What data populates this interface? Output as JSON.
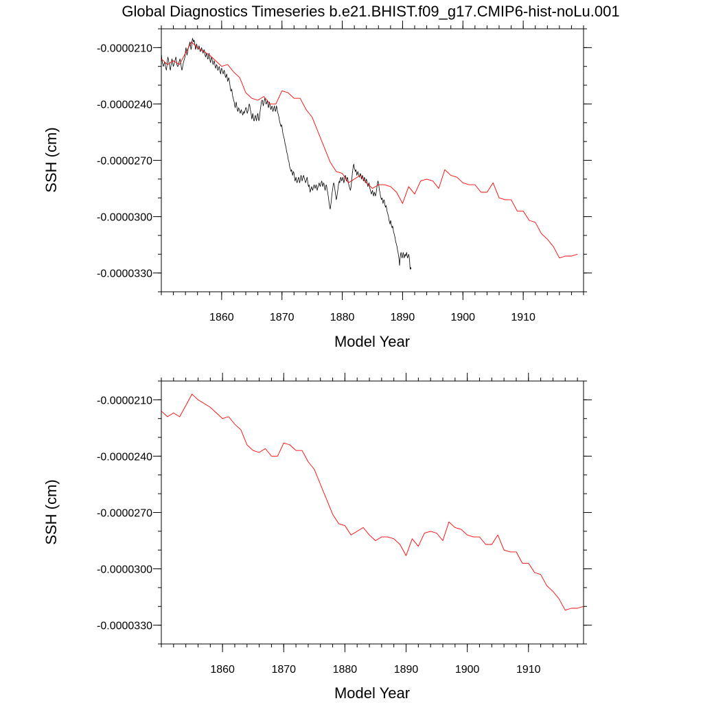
{
  "figure_title": "Global Diagnostics Timeseries b.e21.BHIST.f09_g17.CMIP6-hist-noLu.001",
  "colors": {
    "monthly": "#000000",
    "annual": "#ff0000",
    "axes": "#000000",
    "background": "#ffffff"
  },
  "chart_data": [
    {
      "type": "line",
      "title": "",
      "xlabel": "Model Year",
      "ylabel": "SSH (cm)",
      "xlim": [
        1850,
        1920
      ],
      "ylim": [
        -3.4e-05,
        -2e-05
      ],
      "xticks": [
        1860,
        1870,
        1880,
        1890,
        1900,
        1910
      ],
      "xtick_labels": [
        "1860",
        "1870",
        "1880",
        "1890",
        "1900",
        "1910"
      ],
      "yticks": [
        -2.1e-05,
        -2.4e-05,
        -2.7e-05,
        -3e-05,
        -3.3e-05
      ],
      "ytick_labels": [
        "-0.0000210",
        "-0.0000240",
        "-0.0000270",
        "-0.0000300",
        "-0.0000330"
      ],
      "grid": false,
      "legend": "none",
      "series": [
        {
          "style": "monthly",
          "color": "#000000",
          "x_start": 1850.0,
          "x_step": 0.0833333,
          "values": [
            -2.13e-05,
            -2.16e-05,
            -2.18e-05,
            -2.19e-05,
            -2.2e-05,
            -2.19e-05,
            -2.18e-05,
            -2.18e-05,
            -2.2e-05,
            -2.21e-05,
            -2.22e-05,
            -2.2e-05,
            -2.17e-05,
            -2.15e-05,
            -2.16e-05,
            -2.18e-05,
            -2.19e-05,
            -2.21e-05,
            -2.22e-05,
            -2.2e-05,
            -2.18e-05,
            -2.16e-05,
            -2.17e-05,
            -2.19e-05,
            -2.2e-05,
            -2.19e-05,
            -2.18e-05,
            -2.17e-05,
            -2.16e-05,
            -2.15e-05,
            -2.17e-05,
            -2.19e-05,
            -2.2e-05,
            -2.2e-05,
            -2.19e-05,
            -2.18e-05,
            -2.17e-05,
            -2.16e-05,
            -2.17e-05,
            -2.19e-05,
            -2.21e-05,
            -2.22e-05,
            -2.21e-05,
            -2.19e-05,
            -2.18e-05,
            -2.17e-05,
            -2.16e-05,
            -2.15e-05,
            -2.12e-05,
            -2.1e-05,
            -2.12e-05,
            -2.14e-05,
            -2.13e-05,
            -2.11e-05,
            -2.1e-05,
            -2.09e-05,
            -2.08e-05,
            -2.07e-05,
            -2.09e-05,
            -2.11e-05,
            -2.1e-05,
            -2.07e-05,
            -2.05e-05,
            -2.06e-05,
            -2.07e-05,
            -2.06e-05,
            -2.07e-05,
            -2.09e-05,
            -2.11e-05,
            -2.1e-05,
            -2.08e-05,
            -2.09e-05,
            -2.1e-05,
            -2.11e-05,
            -2.1e-05,
            -2.09e-05,
            -2.1e-05,
            -2.12e-05,
            -2.12e-05,
            -2.11e-05,
            -2.1e-05,
            -2.11e-05,
            -2.12e-05,
            -2.13e-05,
            -2.12e-05,
            -2.11e-05,
            -2.12e-05,
            -2.14e-05,
            -2.15e-05,
            -2.14e-05,
            -2.13e-05,
            -2.14e-05,
            -2.16e-05,
            -2.16e-05,
            -2.14e-05,
            -2.13e-05,
            -2.15e-05,
            -2.17e-05,
            -2.18e-05,
            -2.16e-05,
            -2.15e-05,
            -2.16e-05,
            -2.18e-05,
            -2.19e-05,
            -2.18e-05,
            -2.17e-05,
            -2.18e-05,
            -2.2e-05,
            -2.21e-05,
            -2.2e-05,
            -2.19e-05,
            -2.2e-05,
            -2.22e-05,
            -2.22e-05,
            -2.21e-05,
            -2.2e-05,
            -2.21e-05,
            -2.23e-05,
            -2.24e-05,
            -2.22e-05,
            -2.21e-05,
            -2.22e-05,
            -2.23e-05,
            -2.24e-05,
            -2.23e-05,
            -2.22e-05,
            -2.23e-05,
            -2.25e-05,
            -2.26e-05,
            -2.25e-05,
            -2.24e-05,
            -2.26e-05,
            -2.28e-05,
            -2.27e-05,
            -2.26e-05,
            -2.27e-05,
            -2.29e-05,
            -2.31e-05,
            -2.33e-05,
            -2.33e-05,
            -2.32e-05,
            -2.34e-05,
            -2.36e-05,
            -2.37e-05,
            -2.38e-05,
            -2.39e-05,
            -2.41e-05,
            -2.42e-05,
            -2.4e-05,
            -2.39e-05,
            -2.41e-05,
            -2.43e-05,
            -2.44e-05,
            -2.43e-05,
            -2.42e-05,
            -2.43e-05,
            -2.44e-05,
            -2.45e-05,
            -2.44e-05,
            -2.43e-05,
            -2.44e-05,
            -2.45e-05,
            -2.46e-05,
            -2.45e-05,
            -2.44e-05,
            -2.45e-05,
            -2.44e-05,
            -2.43e-05,
            -2.42e-05,
            -2.42e-05,
            -2.44e-05,
            -2.45e-05,
            -2.44e-05,
            -2.43e-05,
            -2.41e-05,
            -2.4e-05,
            -2.41e-05,
            -2.43e-05,
            -2.44e-05,
            -2.46e-05,
            -2.48e-05,
            -2.47e-05,
            -2.45e-05,
            -2.47e-05,
            -2.49e-05,
            -2.49e-05,
            -2.47e-05,
            -2.46e-05,
            -2.47e-05,
            -2.49e-05,
            -2.48e-05,
            -2.46e-05,
            -2.45e-05,
            -2.47e-05,
            -2.49e-05,
            -2.48e-05,
            -2.45e-05,
            -2.43e-05,
            -2.41e-05,
            -2.39e-05,
            -2.38e-05,
            -2.38e-05,
            -2.4e-05,
            -2.41e-05,
            -2.39e-05,
            -2.38e-05,
            -2.37e-05,
            -2.38e-05,
            -2.4e-05,
            -2.4e-05,
            -2.39e-05,
            -2.38e-05,
            -2.4e-05,
            -2.42e-05,
            -2.41e-05,
            -2.39e-05,
            -2.4e-05,
            -2.42e-05,
            -2.43e-05,
            -2.42e-05,
            -2.41e-05,
            -2.42e-05,
            -2.44e-05,
            -2.43e-05,
            -2.42e-05,
            -2.41e-05,
            -2.43e-05,
            -2.44e-05,
            -2.43e-05,
            -2.41e-05,
            -2.42e-05,
            -2.44e-05,
            -2.45e-05,
            -2.46e-05,
            -2.47e-05,
            -2.49e-05,
            -2.5e-05,
            -2.51e-05,
            -2.52e-05,
            -2.51e-05,
            -2.52e-05,
            -2.54e-05,
            -2.56e-05,
            -2.57e-05,
            -2.58e-05,
            -2.59e-05,
            -2.61e-05,
            -2.62e-05,
            -2.63e-05,
            -2.65e-05,
            -2.66e-05,
            -2.67e-05,
            -2.69e-05,
            -2.7e-05,
            -2.71e-05,
            -2.73e-05,
            -2.74e-05,
            -2.75e-05,
            -2.76e-05,
            -2.75e-05,
            -2.76e-05,
            -2.78e-05,
            -2.77e-05,
            -2.76e-05,
            -2.77e-05,
            -2.79e-05,
            -2.81e-05,
            -2.8e-05,
            -2.79e-05,
            -2.81e-05,
            -2.82e-05,
            -2.81e-05,
            -2.8e-05,
            -2.79e-05,
            -2.8e-05,
            -2.82e-05,
            -2.81e-05,
            -2.79e-05,
            -2.78e-05,
            -2.79e-05,
            -2.81e-05,
            -2.8e-05,
            -2.79e-05,
            -2.78e-05,
            -2.79e-05,
            -2.8e-05,
            -2.81e-05,
            -2.82e-05,
            -2.81e-05,
            -2.8e-05,
            -2.79e-05,
            -2.81e-05,
            -2.83e-05,
            -2.84e-05,
            -2.83e-05,
            -2.85e-05,
            -2.87e-05,
            -2.86e-05,
            -2.85e-05,
            -2.84e-05,
            -2.85e-05,
            -2.86e-05,
            -2.85e-05,
            -2.84e-05,
            -2.83e-05,
            -2.84e-05,
            -2.85e-05,
            -2.84e-05,
            -2.83e-05,
            -2.84e-05,
            -2.86e-05,
            -2.85e-05,
            -2.84e-05,
            -2.83e-05,
            -2.82e-05,
            -2.83e-05,
            -2.84e-05,
            -2.83e-05,
            -2.82e-05,
            -2.81e-05,
            -2.82e-05,
            -2.84e-05,
            -2.83e-05,
            -2.82e-05,
            -2.83e-05,
            -2.85e-05,
            -2.86e-05,
            -2.84e-05,
            -2.83e-05,
            -2.84e-05,
            -2.86e-05,
            -2.87e-05,
            -2.89e-05,
            -2.91e-05,
            -2.93e-05,
            -2.95e-05,
            -2.96e-05,
            -2.94e-05,
            -2.92e-05,
            -2.89e-05,
            -2.87e-05,
            -2.85e-05,
            -2.83e-05,
            -2.82e-05,
            -2.83e-05,
            -2.85e-05,
            -2.87e-05,
            -2.89e-05,
            -2.91e-05,
            -2.9e-05,
            -2.88e-05,
            -2.86e-05,
            -2.84e-05,
            -2.82e-05,
            -2.81e-05,
            -2.82e-05,
            -2.8e-05,
            -2.79e-05,
            -2.8e-05,
            -2.81e-05,
            -2.8e-05,
            -2.79e-05,
            -2.8e-05,
            -2.82e-05,
            -2.81e-05,
            -2.79e-05,
            -2.78e-05,
            -2.79e-05,
            -2.81e-05,
            -2.8e-05,
            -2.79e-05,
            -2.8e-05,
            -2.82e-05,
            -2.83e-05,
            -2.84e-05,
            -2.85e-05,
            -2.86e-05,
            -2.85e-05,
            -2.83e-05,
            -2.8e-05,
            -2.77e-05,
            -2.75e-05,
            -2.73e-05,
            -2.72e-05,
            -2.74e-05,
            -2.75e-05,
            -2.76e-05,
            -2.75e-05,
            -2.76e-05,
            -2.78e-05,
            -2.77e-05,
            -2.76e-05,
            -2.77e-05,
            -2.78e-05,
            -2.79e-05,
            -2.78e-05,
            -2.77e-05,
            -2.78e-05,
            -2.8e-05,
            -2.79e-05,
            -2.78e-05,
            -2.79e-05,
            -2.81e-05,
            -2.8e-05,
            -2.79e-05,
            -2.8e-05,
            -2.82e-05,
            -2.81e-05,
            -2.8e-05,
            -2.81e-05,
            -2.83e-05,
            -2.84e-05,
            -2.83e-05,
            -2.82e-05,
            -2.83e-05,
            -2.85e-05,
            -2.86e-05,
            -2.87e-05,
            -2.88e-05,
            -2.87e-05,
            -2.86e-05,
            -2.87e-05,
            -2.89e-05,
            -2.88e-05,
            -2.87e-05,
            -2.88e-05,
            -2.89e-05,
            -2.88e-05,
            -2.86e-05,
            -2.84e-05,
            -2.82e-05,
            -2.81e-05,
            -2.82e-05,
            -2.84e-05,
            -2.86e-05,
            -2.87e-05,
            -2.89e-05,
            -2.9e-05,
            -2.91e-05,
            -2.9e-05,
            -2.91e-05,
            -2.93e-05,
            -2.92e-05,
            -2.91e-05,
            -2.92e-05,
            -2.94e-05,
            -2.95e-05,
            -2.94e-05,
            -2.95e-05,
            -2.97e-05,
            -2.98e-05,
            -2.99e-05,
            -3e-05,
            -3.02e-05,
            -3.03e-05,
            -3.04e-05,
            -3.02e-05,
            -3.03e-05,
            -3.05e-05,
            -3.06e-05,
            -3.05e-05,
            -3.06e-05,
            -3.08e-05,
            -3.09e-05,
            -3.1e-05,
            -3.11e-05,
            -3.13e-05,
            -3.14e-05,
            -3.15e-05,
            -3.16e-05,
            -3.18e-05,
            -3.19e-05,
            -3.21e-05,
            -3.23e-05,
            -3.26e-05,
            -3.22e-05,
            -3.2e-05,
            -3.19e-05,
            -3.21e-05,
            -3.22e-05,
            -3.21e-05,
            -3.19e-05,
            -3.2e-05,
            -3.22e-05,
            -3.21e-05,
            -3.2e-05,
            -3.21e-05,
            -3.2e-05,
            -3.19e-05,
            -3.21e-05,
            -3.22e-05,
            -3.21e-05,
            -3.2e-05,
            -3.21e-05,
            -3.24e-05,
            -3.28e-05,
            -3.27e-05,
            -3.28e-05
          ]
        },
        {
          "style": "annual",
          "color": "#ff0000",
          "x": [
            1850,
            1851,
            1852,
            1853,
            1854,
            1855,
            1856,
            1857,
            1858,
            1859,
            1860,
            1861,
            1862,
            1863,
            1864,
            1865,
            1866,
            1867,
            1868,
            1869,
            1870,
            1871,
            1872,
            1873,
            1874,
            1875,
            1876,
            1877,
            1878,
            1879,
            1880,
            1881,
            1882,
            1883,
            1884,
            1885,
            1886,
            1887,
            1888,
            1889,
            1890,
            1891,
            1892,
            1893,
            1894,
            1895,
            1896,
            1897,
            1898,
            1899,
            1900,
            1901,
            1902,
            1903,
            1904,
            1905,
            1906,
            1907,
            1908,
            1909,
            1910,
            1911,
            1912,
            1913,
            1914,
            1915,
            1916,
            1917,
            1918,
            1919
          ],
          "values": [
            -2.16e-05,
            -2.19e-05,
            -2.17e-05,
            -2.19e-05,
            -2.13e-05,
            -2.07e-05,
            -2.1e-05,
            -2.12e-05,
            -2.14e-05,
            -2.17e-05,
            -2.2e-05,
            -2.19e-05,
            -2.23e-05,
            -2.26e-05,
            -2.34e-05,
            -2.37e-05,
            -2.38e-05,
            -2.36e-05,
            -2.4e-05,
            -2.4e-05,
            -2.33e-05,
            -2.34e-05,
            -2.37e-05,
            -2.37e-05,
            -2.43e-05,
            -2.47e-05,
            -2.55e-05,
            -2.63e-05,
            -2.71e-05,
            -2.76e-05,
            -2.77e-05,
            -2.82e-05,
            -2.8e-05,
            -2.78e-05,
            -2.82e-05,
            -2.85e-05,
            -2.83e-05,
            -2.83e-05,
            -2.84e-05,
            -2.87e-05,
            -2.93e-05,
            -2.84e-05,
            -2.88e-05,
            -2.81e-05,
            -2.8e-05,
            -2.81e-05,
            -2.85e-05,
            -2.75e-05,
            -2.78e-05,
            -2.79e-05,
            -2.82e-05,
            -2.83e-05,
            -2.83e-05,
            -2.87e-05,
            -2.87e-05,
            -2.82e-05,
            -2.9e-05,
            -2.91e-05,
            -2.91e-05,
            -2.97e-05,
            -2.97e-05,
            -3.02e-05,
            -3.03e-05,
            -3.09e-05,
            -3.12e-05,
            -3.16e-05,
            -3.22e-05,
            -3.21e-05,
            -3.21e-05,
            -3.2e-05
          ]
        }
      ]
    },
    {
      "type": "line",
      "title": "",
      "xlabel": "Model Year",
      "ylabel": "SSH (cm)",
      "xlim": [
        1850,
        1919
      ],
      "ylim": [
        -3.4e-05,
        -2e-05
      ],
      "xticks": [
        1860,
        1870,
        1880,
        1890,
        1900,
        1910
      ],
      "xtick_labels": [
        "1860",
        "1870",
        "1880",
        "1890",
        "1900",
        "1910"
      ],
      "yticks": [
        -2.1e-05,
        -2.4e-05,
        -2.7e-05,
        -3e-05,
        -3.3e-05
      ],
      "ytick_labels": [
        "-0.0000210",
        "-0.0000240",
        "-0.0000270",
        "-0.0000300",
        "-0.0000330"
      ],
      "grid": false,
      "legend": "none",
      "series": [
        {
          "style": "annual",
          "color": "#ff0000",
          "x": [
            1850,
            1851,
            1852,
            1853,
            1854,
            1855,
            1856,
            1857,
            1858,
            1859,
            1860,
            1861,
            1862,
            1863,
            1864,
            1865,
            1866,
            1867,
            1868,
            1869,
            1870,
            1871,
            1872,
            1873,
            1874,
            1875,
            1876,
            1877,
            1878,
            1879,
            1880,
            1881,
            1882,
            1883,
            1884,
            1885,
            1886,
            1887,
            1888,
            1889,
            1890,
            1891,
            1892,
            1893,
            1894,
            1895,
            1896,
            1897,
            1898,
            1899,
            1900,
            1901,
            1902,
            1903,
            1904,
            1905,
            1906,
            1907,
            1908,
            1909,
            1910,
            1911,
            1912,
            1913,
            1914,
            1915,
            1916,
            1917,
            1918,
            1919
          ],
          "values": [
            -2.16e-05,
            -2.19e-05,
            -2.17e-05,
            -2.19e-05,
            -2.13e-05,
            -2.07e-05,
            -2.1e-05,
            -2.12e-05,
            -2.14e-05,
            -2.17e-05,
            -2.2e-05,
            -2.19e-05,
            -2.23e-05,
            -2.26e-05,
            -2.34e-05,
            -2.37e-05,
            -2.38e-05,
            -2.36e-05,
            -2.4e-05,
            -2.4e-05,
            -2.33e-05,
            -2.34e-05,
            -2.37e-05,
            -2.37e-05,
            -2.43e-05,
            -2.47e-05,
            -2.55e-05,
            -2.63e-05,
            -2.71e-05,
            -2.76e-05,
            -2.77e-05,
            -2.82e-05,
            -2.8e-05,
            -2.78e-05,
            -2.82e-05,
            -2.85e-05,
            -2.83e-05,
            -2.83e-05,
            -2.84e-05,
            -2.87e-05,
            -2.93e-05,
            -2.84e-05,
            -2.88e-05,
            -2.81e-05,
            -2.8e-05,
            -2.81e-05,
            -2.85e-05,
            -2.75e-05,
            -2.78e-05,
            -2.79e-05,
            -2.82e-05,
            -2.83e-05,
            -2.83e-05,
            -2.87e-05,
            -2.87e-05,
            -2.82e-05,
            -2.9e-05,
            -2.91e-05,
            -2.91e-05,
            -2.97e-05,
            -2.97e-05,
            -3.02e-05,
            -3.03e-05,
            -3.09e-05,
            -3.12e-05,
            -3.16e-05,
            -3.22e-05,
            -3.21e-05,
            -3.21e-05,
            -3.2e-05
          ]
        }
      ]
    }
  ]
}
